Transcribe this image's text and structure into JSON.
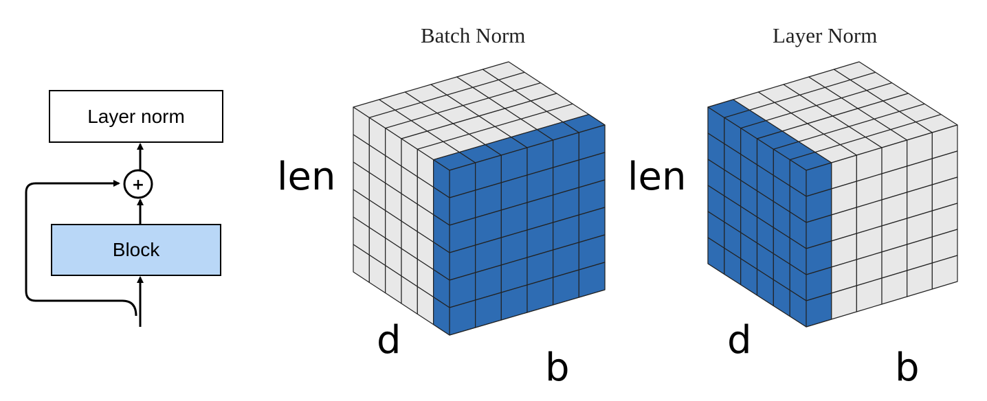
{
  "residual_block": {
    "norm_label": "Layer norm",
    "add_symbol": "+",
    "block_label": "Block",
    "block_color": "#b9d7f7"
  },
  "cubes": [
    {
      "title": "Batch Norm",
      "axis_labels": {
        "len": "len",
        "d": "d",
        "b": "b"
      },
      "highlight": "front (len × b) face slice"
    },
    {
      "title": "Layer Norm",
      "axis_labels": {
        "len": "len",
        "d": "d",
        "b": "b"
      },
      "highlight": "side (len × d) face slice"
    }
  ],
  "colors": {
    "highlight": "#2e6cb3",
    "cell": "#e8e8e8",
    "grid_line": "#222222"
  }
}
